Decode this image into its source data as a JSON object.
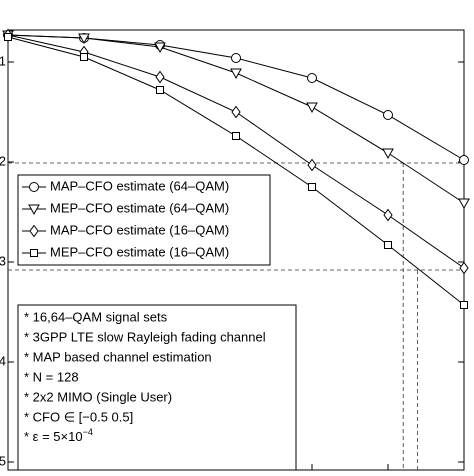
{
  "chart_data": {
    "type": "line",
    "x": [
      0,
      1,
      2,
      3,
      4,
      5,
      6
    ],
    "xlim": [
      0,
      6
    ],
    "ylim": [
      0.68,
      5.08
    ],
    "yticks": [
      1,
      2,
      3,
      4,
      5
    ],
    "y_reversed": true,
    "series": [
      {
        "name": "MAP–CFO estimate (64–QAM)",
        "marker": "circle",
        "color": "#000000",
        "values": [
          0.73,
          0.76,
          0.83,
          0.96,
          1.16,
          1.53,
          1.98
        ]
      },
      {
        "name": "MEP–CFO estimate (64–QAM)",
        "marker": "triangle",
        "color": "#000000",
        "values": [
          0.73,
          0.76,
          0.85,
          1.11,
          1.45,
          1.91,
          2.41
        ]
      },
      {
        "name": "MAP–CFO estimate (16–QAM)",
        "marker": "diamond",
        "color": "#000000",
        "values": [
          0.73,
          0.9,
          1.15,
          1.5,
          2.03,
          2.53,
          3.06
        ]
      },
      {
        "name": "MEP–CFO estimate (16–QAM)",
        "marker": "square",
        "color": "#000000",
        "values": [
          0.75,
          0.95,
          1.28,
          1.74,
          2.25,
          2.83,
          3.43
        ]
      }
    ],
    "hlines": [
      2.01,
      3.08
    ],
    "vlines": [
      5.2,
      5.39
    ],
    "notes": [
      "* 16,64–QAM signal sets",
      "* 3GPP LTE slow Rayleigh fading channel",
      "* MAP based channel estimation",
      "* N = 128",
      "* 2x2 MIMO (Single User)",
      "* CFO ∈ [−0.5 0.5]"
    ],
    "note_last": {
      "base": "* ε = 5×10",
      "sup": "−4"
    }
  }
}
